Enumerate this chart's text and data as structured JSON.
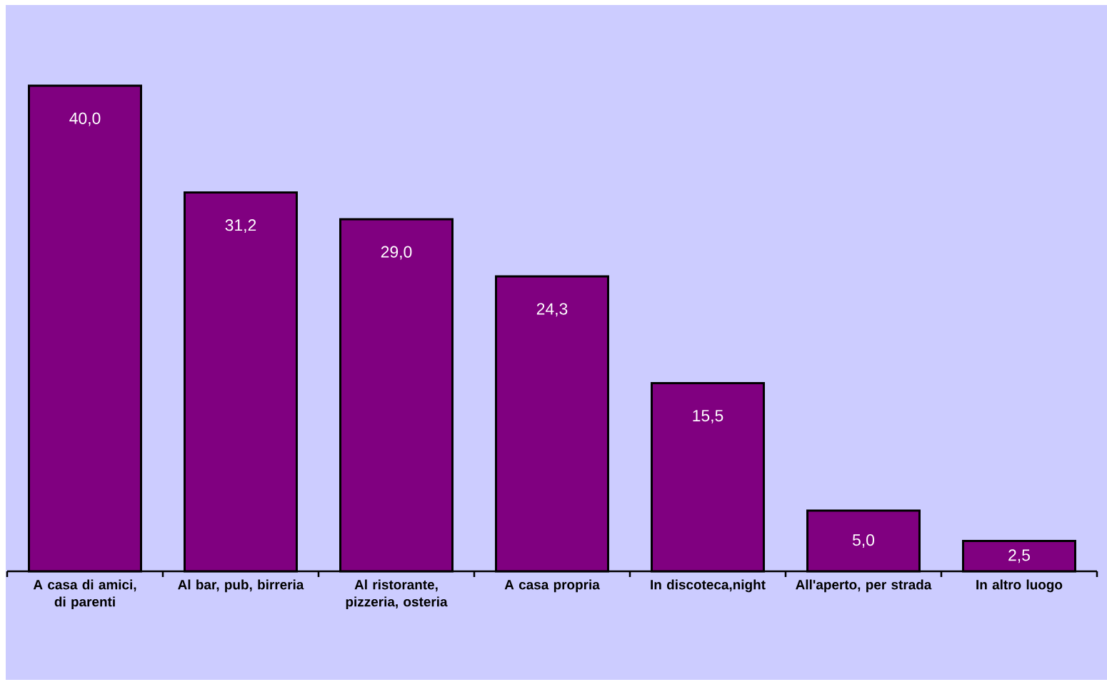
{
  "chart_data": {
    "type": "bar",
    "categories": [
      "A casa di amici, di parenti",
      "Al bar, pub, birreria",
      "Al ristorante, pizzeria, osteria",
      "A casa propria",
      "In discoteca,night",
      "All'aperto, per strada",
      "In altro luogo"
    ],
    "values": [
      40.0,
      31.2,
      29.0,
      24.3,
      15.5,
      5.0,
      2.5
    ],
    "value_labels": [
      "40,0",
      "31,2",
      "29,0",
      "24,3",
      "15,5",
      "5,0",
      "2,5"
    ],
    "color": "#800080"
  }
}
